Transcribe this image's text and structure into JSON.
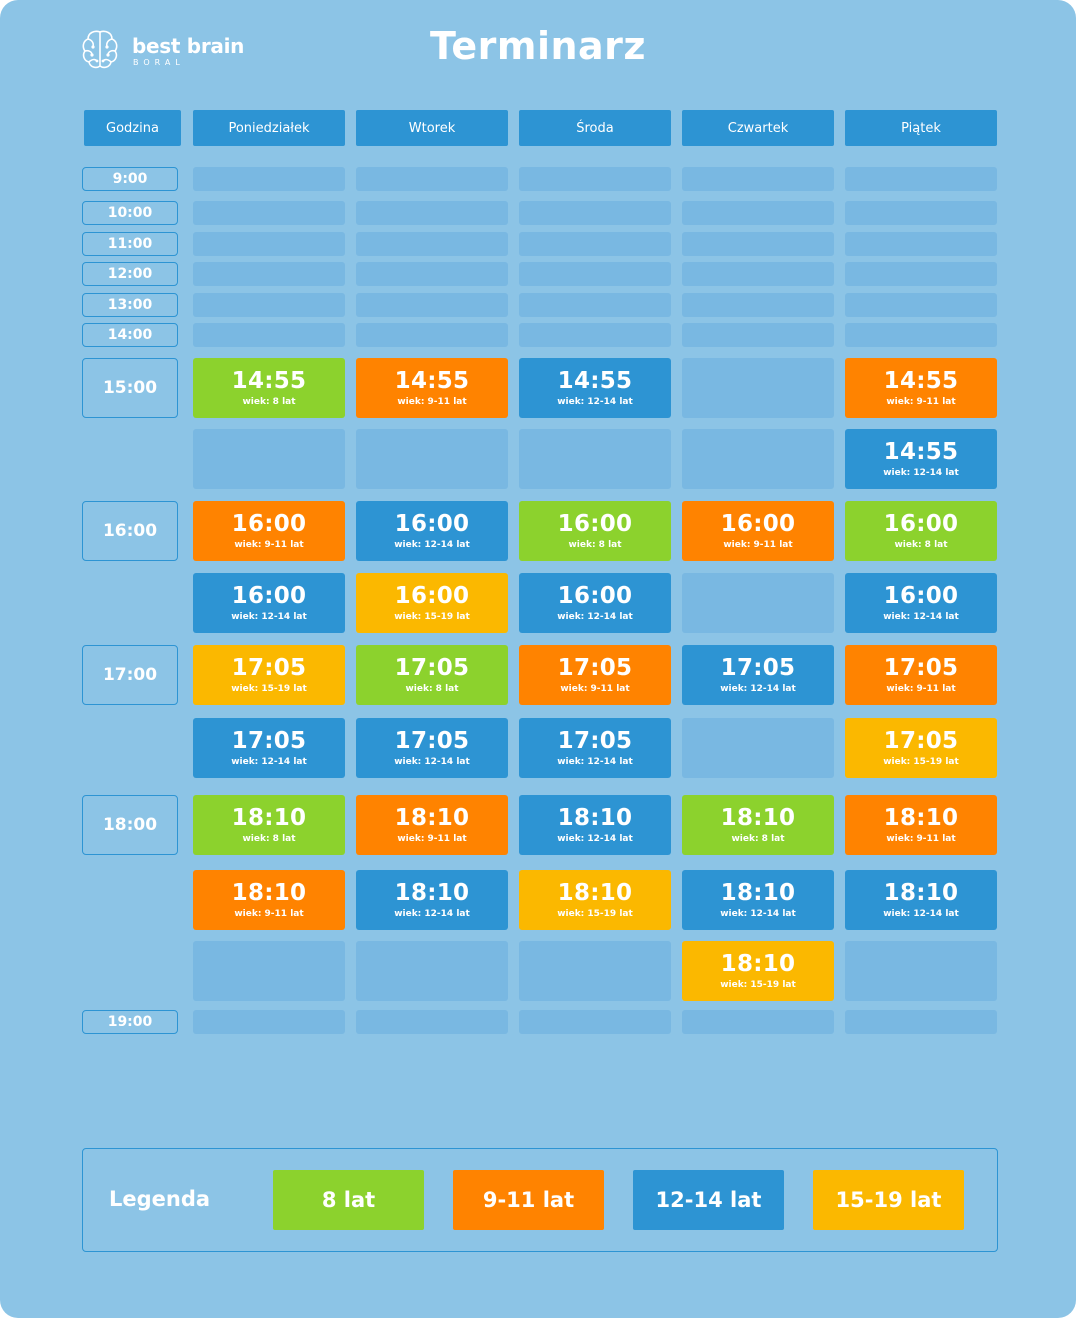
{
  "header": {
    "logo_name": "best brain",
    "logo_sub": "BORAL",
    "logo_icon": "brain-icon",
    "title": "Terminarz"
  },
  "colors": {
    "8 lat": "#8cd22d",
    "9-11 lat": "#ff8300",
    "12-14 lat": "#2d94d3",
    "15-19 lat": "#fbb800",
    "empty": "#79b8e2",
    "background": "#8cc4e6"
  },
  "columns": {
    "hour": "Godzina",
    "days": [
      "Poniedziałek",
      "Wtorek",
      "Środa",
      "Czwartek",
      "Piątek"
    ]
  },
  "hours": [
    "9:00",
    "10:00",
    "11:00",
    "12:00",
    "13:00",
    "14:00",
    "15:00",
    "16:00",
    "17:00",
    "18:00",
    "19:00"
  ],
  "grid": [
    [
      null,
      null,
      null,
      null,
      null
    ],
    [
      null,
      null,
      null,
      null,
      null
    ],
    [
      null,
      null,
      null,
      null,
      null
    ],
    [
      null,
      null,
      null,
      null,
      null
    ],
    [
      null,
      null,
      null,
      null,
      null
    ],
    [
      null,
      null,
      null,
      null,
      null
    ],
    [
      {
        "time": "14:55",
        "age": "wiek: 8 lat",
        "group": "8 lat"
      },
      {
        "time": "14:55",
        "age": "wiek: 9-11 lat",
        "group": "9-11 lat"
      },
      {
        "time": "14:55",
        "age": "wiek: 12-14 lat",
        "group": "12-14 lat"
      },
      null,
      {
        "time": "14:55",
        "age": "wiek: 9-11 lat",
        "group": "9-11 lat"
      }
    ],
    [
      null,
      null,
      null,
      null,
      {
        "time": "14:55",
        "age": "wiek: 12-14 lat",
        "group": "12-14 lat"
      }
    ],
    [
      {
        "time": "16:00",
        "age": "wiek: 9-11 lat",
        "group": "9-11 lat"
      },
      {
        "time": "16:00",
        "age": "wiek: 12-14 lat",
        "group": "12-14 lat"
      },
      {
        "time": "16:00",
        "age": "wiek: 8 lat",
        "group": "8 lat"
      },
      {
        "time": "16:00",
        "age": "wiek: 9-11 lat",
        "group": "9-11 lat"
      },
      {
        "time": "16:00",
        "age": "wiek: 8 lat",
        "group": "8 lat"
      }
    ],
    [
      {
        "time": "16:00",
        "age": "wiek: 12-14 lat",
        "group": "12-14 lat"
      },
      {
        "time": "16:00",
        "age": "wiek: 15-19 lat",
        "group": "15-19 lat"
      },
      {
        "time": "16:00",
        "age": "wiek: 12-14 lat",
        "group": "12-14 lat"
      },
      null,
      {
        "time": "16:00",
        "age": "wiek: 12-14 lat",
        "group": "12-14 lat"
      }
    ],
    [
      {
        "time": "17:05",
        "age": "wiek: 15-19 lat",
        "group": "15-19 lat"
      },
      {
        "time": "17:05",
        "age": "wiek: 8 lat",
        "group": "8 lat"
      },
      {
        "time": "17:05",
        "age": "wiek: 9-11 lat",
        "group": "9-11 lat"
      },
      {
        "time": "17:05",
        "age": "wiek: 12-14 lat",
        "group": "12-14 lat"
      },
      {
        "time": "17:05",
        "age": "wiek: 9-11 lat",
        "group": "9-11 lat"
      }
    ],
    [
      {
        "time": "17:05",
        "age": "wiek: 12-14 lat",
        "group": "12-14 lat"
      },
      {
        "time": "17:05",
        "age": "wiek: 12-14 lat",
        "group": "12-14 lat"
      },
      {
        "time": "17:05",
        "age": "wiek: 12-14 lat",
        "group": "12-14 lat"
      },
      null,
      {
        "time": "17:05",
        "age": "wiek: 15-19 lat",
        "group": "15-19 lat"
      }
    ],
    [
      {
        "time": "18:10",
        "age": "wiek: 8 lat",
        "group": "8 lat"
      },
      {
        "time": "18:10",
        "age": "wiek: 9-11 lat",
        "group": "9-11 lat"
      },
      {
        "time": "18:10",
        "age": "wiek: 12-14 lat",
        "group": "12-14 lat"
      },
      {
        "time": "18:10",
        "age": "wiek: 8 lat",
        "group": "8 lat"
      },
      {
        "time": "18:10",
        "age": "wiek: 9-11 lat",
        "group": "9-11 lat"
      }
    ],
    [
      {
        "time": "18:10",
        "age": "wiek: 9-11 lat",
        "group": "9-11 lat"
      },
      {
        "time": "18:10",
        "age": "wiek: 12-14 lat",
        "group": "12-14 lat"
      },
      {
        "time": "18:10",
        "age": "wiek: 15-19 lat",
        "group": "15-19 lat"
      },
      {
        "time": "18:10",
        "age": "wiek: 12-14 lat",
        "group": "12-14 lat"
      },
      {
        "time": "18:10",
        "age": "wiek: 12-14 lat",
        "group": "12-14 lat"
      }
    ],
    [
      null,
      null,
      null,
      {
        "time": "18:10",
        "age": "wiek: 15-19 lat",
        "group": "15-19 lat"
      },
      null
    ],
    [
      null,
      null,
      null,
      null,
      null
    ]
  ],
  "legend": {
    "title": "Legenda",
    "items": [
      {
        "label": "8 lat"
      },
      {
        "label": "9-11 lat"
      },
      {
        "label": "12-14 lat"
      },
      {
        "label": "15-19 lat"
      }
    ]
  }
}
